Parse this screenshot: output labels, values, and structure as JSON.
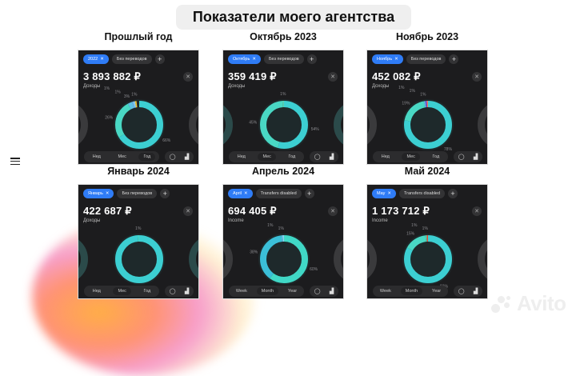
{
  "title": "Показатели моего агентства",
  "menu_icon": "hamburger-icon",
  "watermark": "Avito",
  "cards": [
    {
      "heading": "Прошлый год",
      "chip": "2022",
      "filter": "Без переводов",
      "amount": "3 893 882 ₽",
      "label": "Доходы",
      "periods": [
        "Нед",
        "Мес",
        "Год"
      ],
      "active": 2,
      "segments": [
        {
          "pct": 66,
          "color": "#3ccfd2",
          "label": "66%"
        },
        {
          "pct": 26,
          "color": "#49d8c4",
          "label": "26%"
        },
        {
          "pct": 3,
          "color": "#5cc2e4",
          "label": "3%"
        },
        {
          "pct": 1,
          "color": "#72b9f0",
          "label": "1%"
        },
        {
          "pct": 1,
          "color": "#8fd3f2",
          "label": "1%"
        },
        {
          "pct": 1,
          "color": "#f2c230",
          "label": "1%"
        }
      ]
    },
    {
      "heading": "Октябрь 2023",
      "chip": "Октябрь",
      "filter": "Без переводов",
      "amount": "359 419 ₽",
      "label": "Доходы",
      "periods": [
        "Нед",
        "Мес",
        "Год"
      ],
      "active": 1,
      "segments": [
        {
          "pct": 54,
          "color": "#3ccfd2",
          "label": "54%"
        },
        {
          "pct": 45,
          "color": "#49d8c4",
          "label": "45%"
        },
        {
          "pct": 1,
          "color": "#5ad0b0",
          "label": "1%"
        }
      ]
    },
    {
      "heading": "Ноябрь 2023",
      "chip": "Ноябрь",
      "filter": "Без переводов",
      "amount": "452 082 ₽",
      "label": "Доходы",
      "periods": [
        "Нед",
        "Мес",
        "Год"
      ],
      "active": 1,
      "segments": [
        {
          "pct": 78,
          "color": "#3ccfd2",
          "label": "78%"
        },
        {
          "pct": 19,
          "color": "#49d8c4",
          "label": "19%"
        },
        {
          "pct": 1,
          "color": "#5cc2e4",
          "label": "1%"
        },
        {
          "pct": 1,
          "color": "#6b4ce0",
          "label": "1%"
        },
        {
          "pct": 1,
          "color": "#f07c5a",
          "label": "1%"
        }
      ]
    },
    {
      "heading": "Январь 2024",
      "chip": "Январь",
      "filter": "Без переводов",
      "amount": "422 687 ₽",
      "label": "Доходы",
      "periods": [
        "Нед",
        "Мес",
        "Год"
      ],
      "active": 1,
      "segments": [
        {
          "pct": 99,
          "color": "#3ccfd2",
          "label": "99%"
        },
        {
          "pct": 1,
          "color": "#49d8c4",
          "label": "1%"
        }
      ]
    },
    {
      "heading": "Апрель 2024",
      "chip": "April",
      "filter": "Transfers disabled",
      "amount": "694 405 ₽",
      "label": "Income",
      "periods": [
        "Week",
        "Month",
        "Year"
      ],
      "active": 1,
      "segments": [
        {
          "pct": 60,
          "color": "#40d8c6",
          "label": "60%"
        },
        {
          "pct": 38,
          "color": "#3bbfd8",
          "label": "38%"
        },
        {
          "pct": 1,
          "color": "#5cc2e4",
          "label": "1%"
        },
        {
          "pct": 1,
          "color": "#8fd3f2",
          "label": "1%"
        }
      ]
    },
    {
      "heading": "Май 2024",
      "chip": "May",
      "filter": "Transfers disabled",
      "amount": "1 173 712 ₽",
      "label": "Income",
      "periods": [
        "Week",
        "Month",
        "Year"
      ],
      "active": 1,
      "segments": [
        {
          "pct": 83,
          "color": "#3ccfd2",
          "label": "83%"
        },
        {
          "pct": 15,
          "color": "#49d8c4",
          "label": "15%"
        },
        {
          "pct": 1,
          "color": "#5ad0b0",
          "label": "1%"
        },
        {
          "pct": 1,
          "color": "#e84a35",
          "label": "1%"
        }
      ]
    }
  ]
}
